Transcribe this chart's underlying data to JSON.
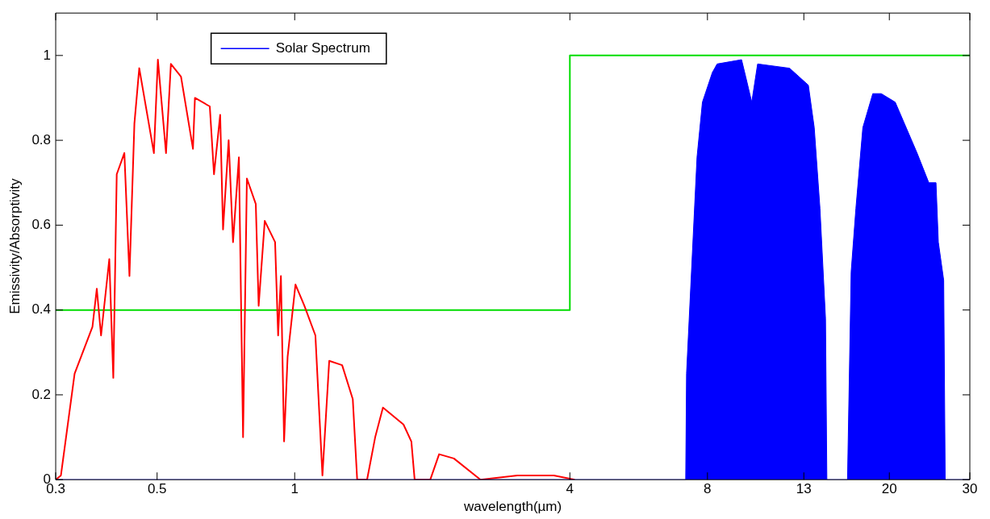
{
  "chart_data": {
    "type": "line",
    "xlabel": "wavelength(µm)",
    "ylabel": "Emissivity/Absorptivity",
    "log": "x",
    "xlim": [
      0.3,
      30
    ],
    "xticks": [
      0.3,
      0.5,
      1,
      4,
      8,
      13,
      20,
      30
    ],
    "ylim": [
      0,
      1.1
    ],
    "yticks": [
      0,
      0.2,
      0.4,
      0.6,
      0.8,
      1
    ],
    "legend": "top left",
    "series": [
      {
        "type": "area",
        "name": "Solar Spectrum",
        "color": "#0000ff",
        "x": [
          0.3,
          7.17,
          7.2,
          7.59,
          7.8,
          8.2,
          8.4,
          9.5,
          9.7,
          10.0,
          10.3,
          12.1,
          13.3,
          13.7,
          14.1,
          14.5,
          14.6,
          16.2,
          16.5,
          16.9,
          17.5,
          18.4,
          19.2,
          20.6,
          23.0,
          24.4,
          25.3,
          25.6,
          26.3,
          26.5,
          30
        ],
        "values": [
          0,
          0,
          0.25,
          0.76,
          0.89,
          0.96,
          0.98,
          0.99,
          0.95,
          0.89,
          0.98,
          0.97,
          0.93,
          0.83,
          0.64,
          0.38,
          0,
          0,
          0.49,
          0.64,
          0.83,
          0.91,
          0.91,
          0.89,
          0.77,
          0.7,
          0.7,
          0.56,
          0.47,
          0,
          0
        ]
      },
      {
        "color": "#ff0000",
        "x": [
          0.3,
          0.308,
          0.33,
          0.361,
          0.369,
          0.377,
          0.393,
          0.401,
          0.408,
          0.424,
          0.435,
          0.446,
          0.457,
          0.492,
          0.502,
          0.523,
          0.536,
          0.564,
          0.599,
          0.605,
          0.652,
          0.666,
          0.687,
          0.697,
          0.717,
          0.733,
          0.755,
          0.771,
          0.786,
          0.822,
          0.834,
          0.86,
          0.906,
          0.92,
          0.933,
          0.948,
          0.965,
          1.004,
          1.05,
          1.11,
          1.15,
          1.19,
          1.27,
          1.34,
          1.37,
          1.44,
          1.5,
          1.56,
          1.73,
          1.8,
          1.83,
          1.98,
          2.07,
          2.23,
          2.55,
          3.07,
          3.69,
          4.1
        ],
        "values": [
          0,
          0.01,
          0.25,
          0.36,
          0.45,
          0.34,
          0.52,
          0.24,
          0.72,
          0.77,
          0.48,
          0.84,
          0.97,
          0.77,
          0.99,
          0.77,
          0.98,
          0.95,
          0.78,
          0.9,
          0.88,
          0.72,
          0.86,
          0.59,
          0.8,
          0.56,
          0.76,
          0.1,
          0.71,
          0.65,
          0.41,
          0.61,
          0.56,
          0.34,
          0.48,
          0.09,
          0.29,
          0.46,
          0.41,
          0.34,
          0.01,
          0.28,
          0.27,
          0.19,
          0,
          0,
          0.1,
          0.17,
          0.13,
          0.09,
          0,
          0,
          0.06,
          0.05,
          0,
          0.01,
          0.01,
          0
        ]
      },
      {
        "color": "#00dd00",
        "x": [
          0.3,
          4,
          4,
          30
        ],
        "values": [
          0.4,
          0.4,
          1,
          1
        ]
      }
    ]
  }
}
